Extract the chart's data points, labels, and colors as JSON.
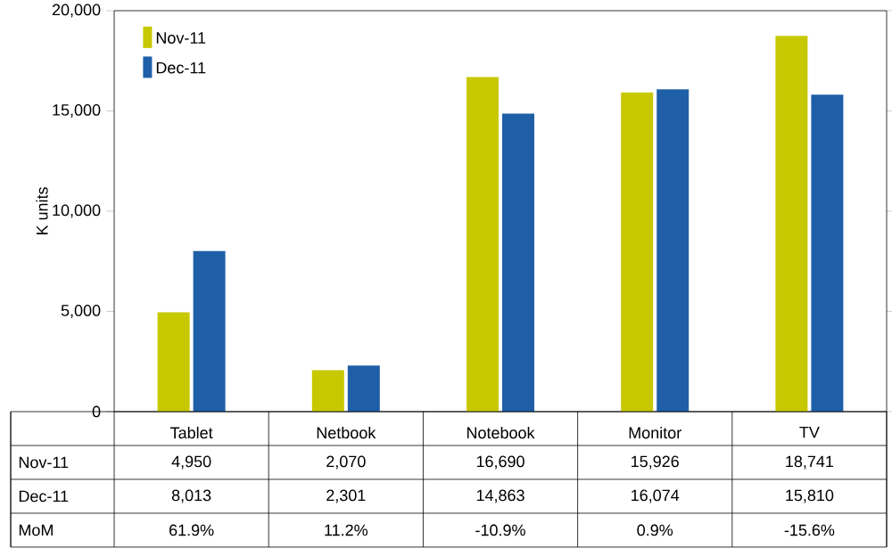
{
  "chart_data": {
    "type": "bar",
    "ylabel": "K units",
    "categories": [
      "Tablet",
      "Netbook",
      "Notebook",
      "Monitor",
      "TV"
    ],
    "series": [
      {
        "name": "Nov-11",
        "color": "#c8c800",
        "values": [
          4950,
          2070,
          16690,
          15926,
          18741
        ],
        "value_labels": [
          "4,950",
          "2,070",
          "16,690",
          "15,926",
          "18,741"
        ]
      },
      {
        "name": "Dec-11",
        "color": "#1f5fa8",
        "values": [
          8013,
          2301,
          14863,
          16074,
          15810
        ],
        "value_labels": [
          "8,013",
          "2,301",
          "14,863",
          "16,074",
          "15,810"
        ]
      }
    ],
    "annotations": [
      "MoM",
      "61.9%",
      "11.2%",
      "-10.9%",
      "0.9%",
      "-15.6%"
    ],
    "ylim": [
      0,
      20000
    ],
    "yticks": [
      0,
      {
        "value": 5000,
        "label": "5,000"
      },
      {
        "value": 10000,
        "label": "10,000"
      },
      {
        "value": 15000,
        "label": "15,000"
      },
      {
        "value": 20000,
        "label": "20,000"
      }
    ],
    "legend": "top left",
    "grid": false
  }
}
